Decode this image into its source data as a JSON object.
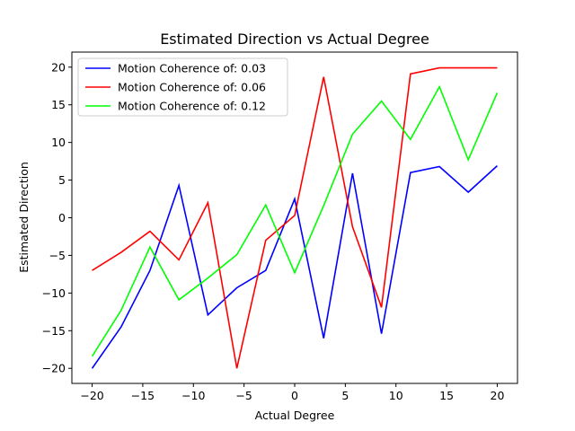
{
  "chart_data": {
    "type": "line",
    "title": "Estimated Direction vs Actual Degree",
    "xlabel": "Actual Degree",
    "ylabel": "Estimated Direction",
    "xlim": [
      -22,
      22
    ],
    "ylim": [
      -22,
      22
    ],
    "xticks": [
      -20,
      -15,
      -10,
      -5,
      0,
      5,
      10,
      15,
      20
    ],
    "yticks": [
      -20,
      -15,
      -10,
      -5,
      0,
      5,
      10,
      15,
      20
    ],
    "xtick_labels": [
      "−20",
      "−15",
      "−10",
      "−5",
      "0",
      "5",
      "10",
      "15",
      "20"
    ],
    "ytick_labels": [
      "−20",
      "−15",
      "−10",
      "−5",
      "0",
      "5",
      "10",
      "15",
      "20"
    ],
    "grid": false,
    "legend_position": "top-left",
    "x": [
      -20,
      -17.14,
      -14.29,
      -11.43,
      -8.57,
      -5.71,
      -2.86,
      0,
      2.86,
      5.71,
      8.57,
      11.43,
      14.29,
      17.14,
      20
    ],
    "series": [
      {
        "name": "Motion Coherence of: 0.03",
        "color": "#0000ff",
        "values": [
          -20.0,
          -14.5,
          -7.0,
          4.3,
          -12.9,
          -9.3,
          -7.0,
          2.5,
          -16.0,
          5.9,
          -15.4,
          6.0,
          6.8,
          3.4,
          6.9
        ]
      },
      {
        "name": "Motion Coherence of: 0.06",
        "color": "#ff0000",
        "values": [
          -7.0,
          -4.6,
          -1.8,
          -5.6,
          2.0,
          -20.0,
          -3.0,
          0.3,
          18.7,
          -1.2,
          -11.9,
          19.1,
          19.9,
          19.9,
          19.9
        ]
      },
      {
        "name": "Motion Coherence of: 0.12",
        "color": "#00ff00",
        "values": [
          -18.4,
          -12.3,
          -3.9,
          -10.9,
          -8.0,
          -4.9,
          1.7,
          -7.3,
          1.6,
          11.1,
          15.5,
          10.4,
          17.4,
          7.7,
          16.6
        ]
      }
    ]
  }
}
